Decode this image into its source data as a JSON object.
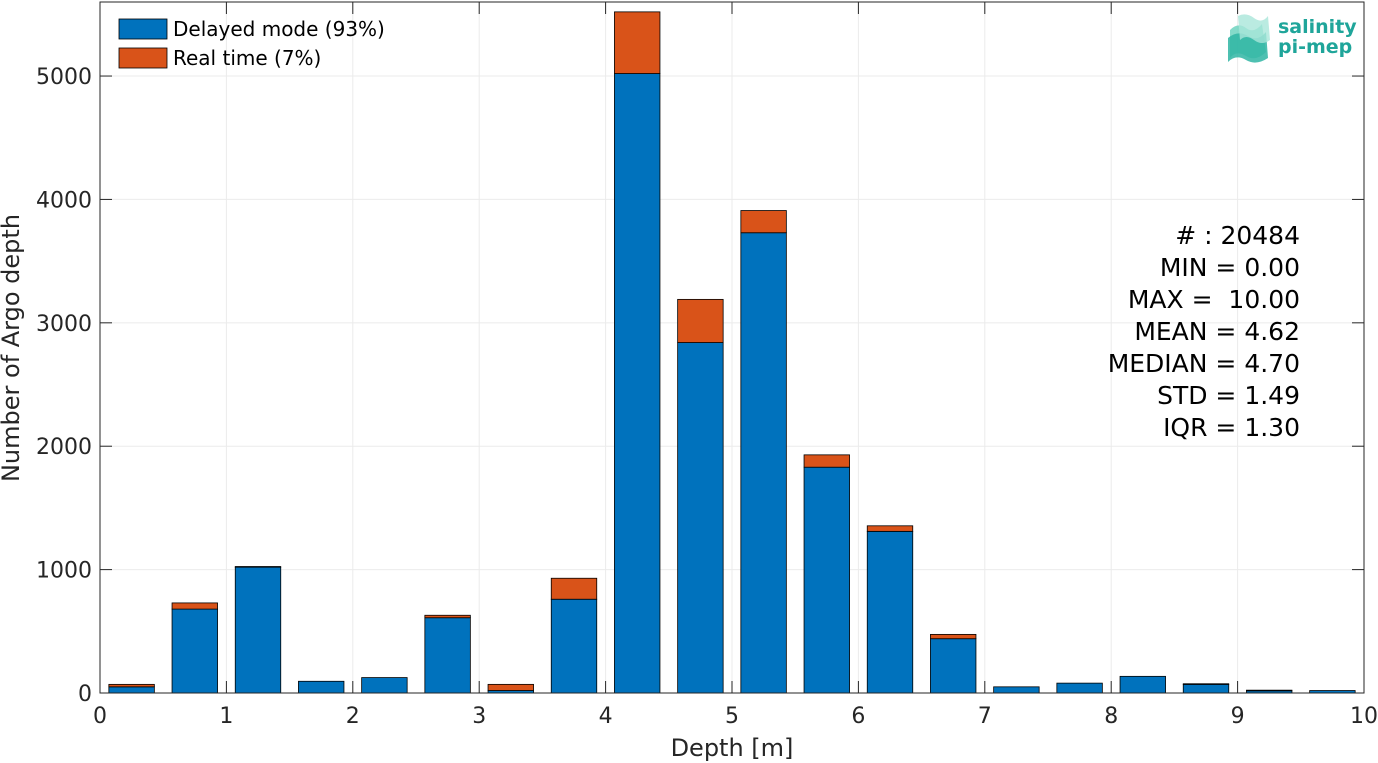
{
  "chart_data": {
    "type": "bar",
    "stacked": true,
    "xlabel": "Depth [m]",
    "ylabel": "Number of Argo depth",
    "xlim": [
      0,
      10
    ],
    "ylim": [
      0,
      5600
    ],
    "xticks": [
      0,
      1,
      2,
      3,
      4,
      5,
      6,
      7,
      8,
      9,
      10
    ],
    "yticks": [
      0,
      1000,
      2000,
      3000,
      4000,
      5000
    ],
    "grid": true,
    "legend_position": "top-left",
    "bin_width": 0.5,
    "x": [
      0.25,
      0.75,
      1.25,
      1.75,
      2.25,
      2.75,
      3.25,
      3.75,
      4.25,
      4.75,
      5.25,
      5.75,
      6.25,
      6.75,
      7.25,
      7.75,
      8.25,
      8.75,
      9.25,
      9.75
    ],
    "series": [
      {
        "name": "Delayed mode (93%)",
        "color": "#0072bd",
        "values": [
          50,
          680,
          1020,
          95,
          125,
          610,
          20,
          760,
          5020,
          2840,
          3730,
          1830,
          1310,
          440,
          50,
          80,
          135,
          70,
          18,
          20
        ]
      },
      {
        "name": "Real time (7%)",
        "color": "#d95319",
        "values": [
          20,
          50,
          5,
          0,
          0,
          20,
          50,
          170,
          500,
          350,
          180,
          100,
          45,
          35,
          0,
          0,
          0,
          5,
          5,
          0
        ]
      }
    ],
    "annotations": [
      "# : 20484",
      "MIN = 0.00",
      "MAX =  10.00",
      "MEAN = 4.62",
      "MEDIAN = 4.70",
      "STD = 1.49",
      "IQR = 1.30"
    ]
  },
  "logo": {
    "line1": "salinity",
    "line2": "pi-mep"
  }
}
